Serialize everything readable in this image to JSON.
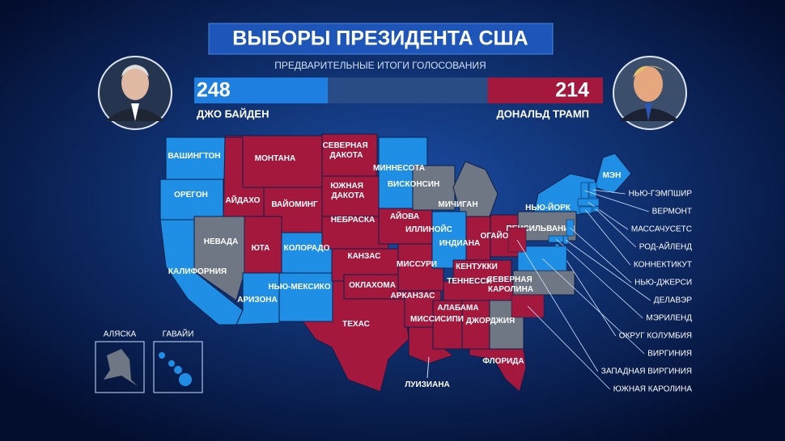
{
  "header": {
    "title": "ВЫБОРЫ ПРЕЗИДЕНТА США",
    "subtitle": "ПРЕДВАРИТЕЛЬНЫЕ ИТОГИ ГОЛОСОВАНИЯ"
  },
  "candidates": [
    {
      "name": "ДЖО БАЙДЕН",
      "votes": 248,
      "color": "#1f7fe0"
    },
    {
      "name": "ДОНАЛЬД ТРАМП",
      "votes": 214,
      "color": "#a3183c"
    }
  ],
  "states": [
    {
      "label": "КАЛИФОРНИЯ",
      "color": "#1f8fe6"
    },
    {
      "label": "ВАШИНГТОН",
      "color": "#1f8fe6"
    },
    {
      "label": "ОРЕГОН",
      "color": "#1f8fe6"
    },
    {
      "label": "НЕВАДА",
      "color": "#6e7783"
    },
    {
      "label": "МОНТАНА",
      "color": "#a3183c"
    },
    {
      "label": "АЙДАХО",
      "color": "#a3183c"
    },
    {
      "label": "ВАЙОМИНГ",
      "color": "#a3183c"
    },
    {
      "label": "ЮТА",
      "color": "#a3183c"
    },
    {
      "label": "КОЛОРАДО",
      "color": "#1f8fe6"
    },
    {
      "label": "АРИЗОНА",
      "color": "#1f8fe6"
    },
    {
      "label": "НЬЮ-МЕКСИКО",
      "color": "#1f8fe6"
    },
    {
      "label": "СЕВЕРНАЯ ДАКОТА",
      "color": "#a3183c"
    },
    {
      "label": "ЮЖНАЯ ДАКОТА",
      "color": "#a3183c"
    },
    {
      "label": "НЕБРАСКА",
      "color": "#a3183c"
    },
    {
      "label": "КАНЗАС",
      "color": "#a3183c"
    },
    {
      "label": "ТЕХАС",
      "color": "#a3183c"
    },
    {
      "label": "ОКЛАХОМА",
      "color": "#a3183c"
    },
    {
      "label": "МИННЕСОТА",
      "color": "#1f8fe6"
    },
    {
      "label": "АЙОВА",
      "color": "#a3183c"
    },
    {
      "label": "МИССУРИ",
      "color": "#a3183c"
    },
    {
      "label": "АРКАНЗАС",
      "color": "#a3183c"
    },
    {
      "label": "ЛУИЗИАНА",
      "color": "#a3183c"
    },
    {
      "label": "ВИСКОНСИН",
      "color": "#6e7783"
    },
    {
      "label": "МИЧИГАН",
      "color": "#6e7783"
    },
    {
      "label": "ИЛЛИНОЙС",
      "color": "#1f8fe6"
    },
    {
      "label": "ИНДИАНА",
      "color": "#a3183c"
    },
    {
      "label": "ОГАЙО",
      "color": "#a3183c"
    },
    {
      "label": "КЕНТУККИ",
      "color": "#a3183c"
    },
    {
      "label": "ТЕННЕССИ",
      "color": "#a3183c"
    },
    {
      "label": "МИССИСИПИ",
      "color": "#a3183c"
    },
    {
      "label": "АЛАБАМА",
      "color": "#a3183c"
    },
    {
      "label": "ДЖОРДЖИЯ",
      "color": "#6e7783"
    },
    {
      "label": "ФЛОРИДА",
      "color": "#a3183c"
    },
    {
      "label": "СЕВЕРНАЯ КАРОЛИНА",
      "color": "#6e7783"
    },
    {
      "label": "ПЕНСИЛЬВАНИЯ",
      "color": "#6e7783"
    },
    {
      "label": "НЬЮ-ЙОРК",
      "color": "#1f8fe6"
    },
    {
      "label": "МЭН",
      "color": "#1f8fe6"
    }
  ],
  "callouts": [
    {
      "label": "НЬЮ-ГЭМПШИР",
      "color": "#1f8fe6"
    },
    {
      "label": "ВЕРМОНТ",
      "color": "#1f8fe6"
    },
    {
      "label": "МАССАЧУСЕТС",
      "color": "#1f8fe6"
    },
    {
      "label": "РОД-АЙЛЕНД",
      "color": "#1f8fe6"
    },
    {
      "label": "КОННЕКТИКУТ",
      "color": "#1f8fe6"
    },
    {
      "label": "НЬЮ-ДЖЕРСИ",
      "color": "#1f8fe6"
    },
    {
      "label": "ДЕЛАВЭР",
      "color": "#1f8fe6"
    },
    {
      "label": "МЭРИЛЕНД",
      "color": "#1f8fe6"
    },
    {
      "label": "ОКРУГ КОЛУМБИЯ",
      "color": "#1f8fe6"
    },
    {
      "label": "ВИРГИНИЯ",
      "color": "#1f8fe6"
    },
    {
      "label": "ЗАПАДНАЯ ВИРГИНИЯ",
      "color": "#a3183c"
    },
    {
      "label": "ЮЖНАЯ КАРОЛИНА",
      "color": "#a3183c"
    }
  ],
  "insets": [
    {
      "label": "АЛЯСКА",
      "color": "#6e7783"
    },
    {
      "label": "ГАВАЙИ",
      "color": "#1f8fe6"
    }
  ]
}
